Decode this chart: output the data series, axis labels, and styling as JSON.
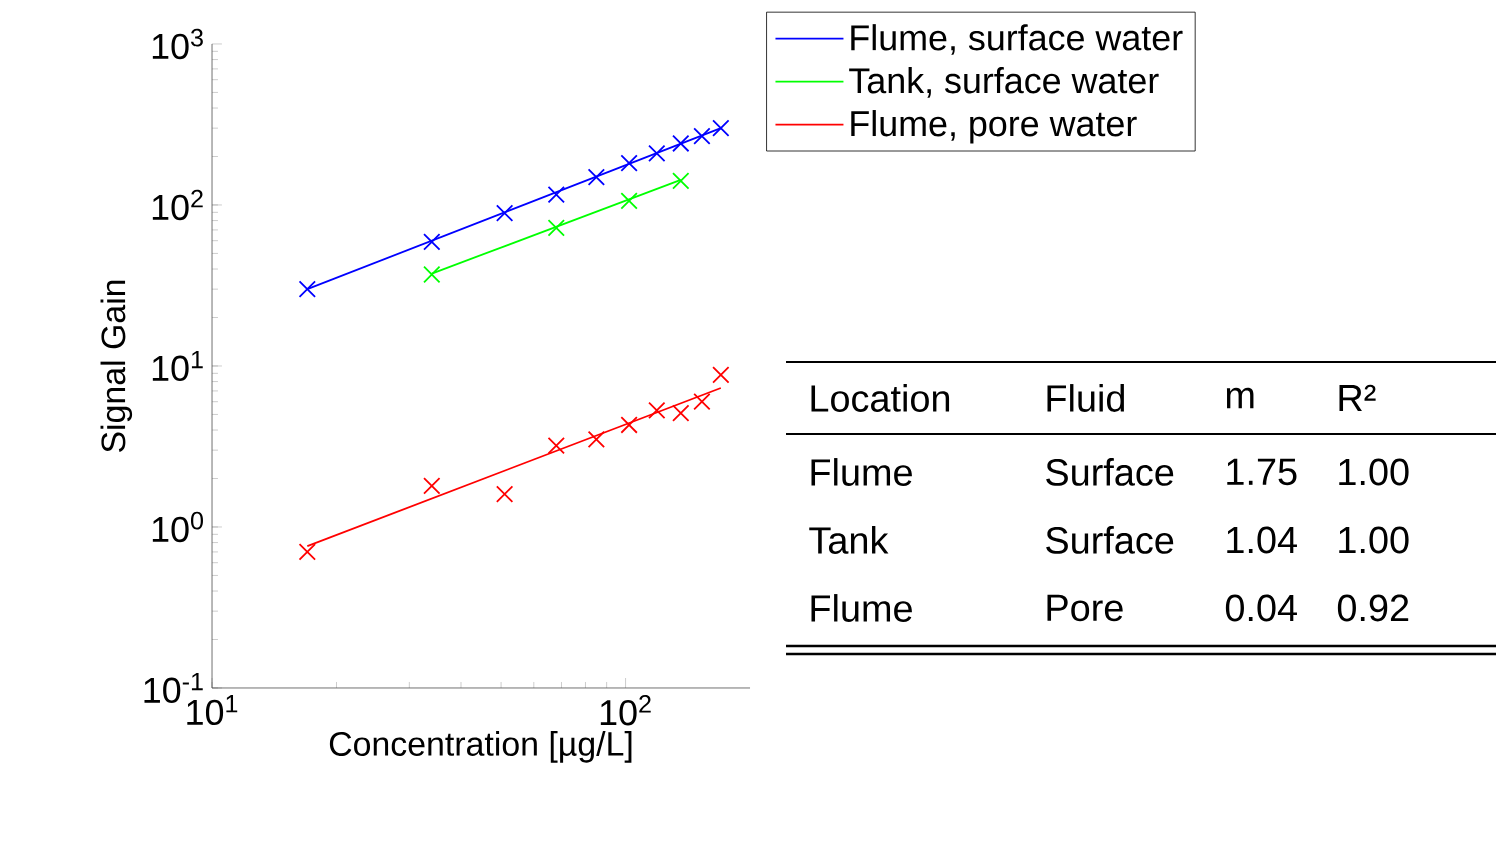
{
  "chart_data": {
    "type": "scatter",
    "xlabel": "Concentration [µg/L]",
    "ylabel": "Signal Gain",
    "log": "xy",
    "grid": false,
    "legend": "top right",
    "xlim": [
      10,
      200
    ],
    "ylim": [
      0.1,
      1000
    ],
    "xticks": [
      {
        "value": 10,
        "label": "10$^{1}$"
      },
      {
        "value": 100,
        "label": "10$^{2}$"
      }
    ],
    "yticks": [
      {
        "value": 0.1,
        "label": "10$^{-1}$"
      },
      {
        "value": 1,
        "label": "10$^{0}$"
      },
      {
        "value": 10,
        "label": "10$^{1}$"
      },
      {
        "value": 100,
        "label": "10$^{2}$"
      },
      {
        "value": 1000,
        "label": "10$^{3}$"
      }
    ],
    "series": [
      {
        "type": "scatter",
        "marker": "cross",
        "color": "#0000ff",
        "x": [
          17,
          34,
          51,
          68,
          85,
          102,
          119,
          136,
          153,
          170
        ],
        "values": [
          30,
          59,
          89,
          116,
          149,
          182,
          209,
          241,
          268,
          300
        ]
      },
      {
        "type": "scatter",
        "marker": "cross",
        "color": "#00ff00",
        "x": [
          34,
          68,
          102,
          136
        ],
        "values": [
          37,
          72,
          106,
          141
        ]
      },
      {
        "type": "scatter",
        "marker": "cross",
        "color": "#ff0000",
        "x": [
          17,
          34,
          51,
          68,
          85,
          102,
          119,
          136,
          153,
          170
        ],
        "values": [
          0.7,
          1.8,
          1.6,
          3.2,
          3.5,
          4.3,
          5.3,
          5.1,
          6,
          8.8
        ]
      },
      {
        "type": "line",
        "marker": "none",
        "name": "Flume, surface water",
        "color": "#0000ff",
        "x": [
          17,
          170
        ],
        "values": [
          30,
          300
        ]
      },
      {
        "type": "line",
        "marker": "none",
        "name": "Tank, surface water",
        "color": "#00ff00",
        "x": [
          34,
          136
        ],
        "values": [
          37.5,
          143
        ]
      },
      {
        "type": "line",
        "marker": "none",
        "name": "Flume, pore water",
        "color": "#ff0000",
        "x": [
          17,
          170
        ],
        "values": [
          0.76,
          7.3
        ]
      }
    ],
    "annotations": [
      "Location",
      "Fluid",
      "m",
      "R²",
      "Flume",
      "Surface",
      "1.75",
      "1.00",
      "Tank",
      "Surface",
      "1.04",
      "1.00",
      "Flume",
      "Pore",
      "0.04",
      "0.92"
    ]
  }
}
